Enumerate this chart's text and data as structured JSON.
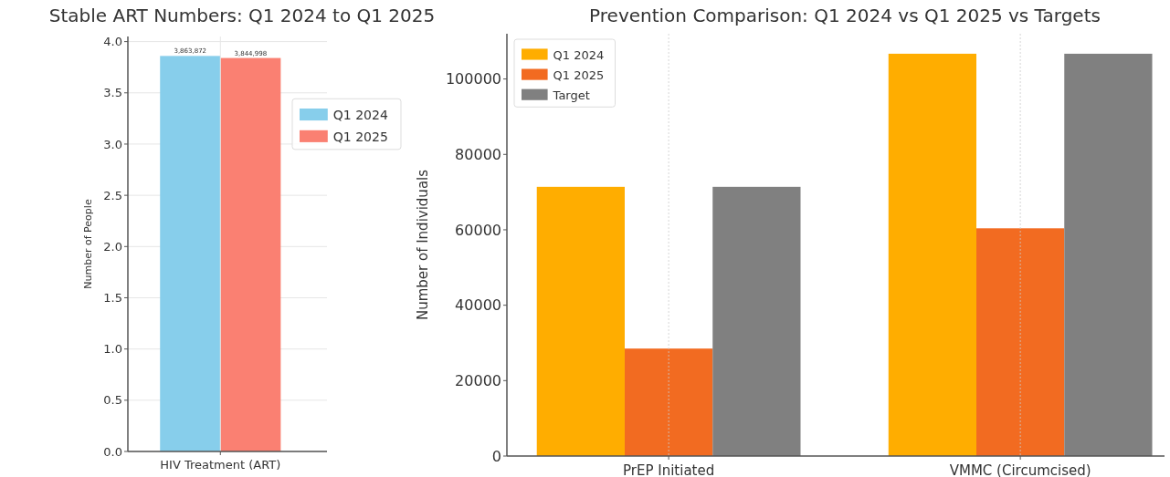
{
  "chart_data": [
    {
      "type": "bar",
      "title": "Stable ART Numbers: Q1 2024 to Q1 2025",
      "ylabel": "Number of People",
      "categories": [
        "HIV Treatment (ART)"
      ],
      "series": [
        {
          "name": "Q1 2024",
          "color": "#87ceeb",
          "values": [
            3.86
          ]
        },
        {
          "name": "Q1 2025",
          "color": "#fa8072",
          "values": [
            3.84
          ]
        }
      ],
      "annotations": [
        "3,863,872",
        "3,844,998"
      ],
      "ylim": [
        0,
        4.05
      ],
      "yticks": [
        {
          "value": 0,
          "label": "0.0"
        },
        {
          "value": 0.5,
          "label": "0.5"
        },
        {
          "value": 1,
          "label": "1.0"
        },
        {
          "value": 1.5,
          "label": "1.5"
        },
        {
          "value": 2,
          "label": "2.0"
        },
        {
          "value": 2.5,
          "label": "2.5"
        },
        {
          "value": 3,
          "label": "3.0"
        },
        {
          "value": 3.5,
          "label": "3.5"
        },
        {
          "value": 4,
          "label": "4.0"
        }
      ],
      "grid": true,
      "legend": "right"
    },
    {
      "type": "bar",
      "title": "Prevention Comparison: Q1 2024 vs Q1 2025 vs Targets",
      "ylabel": "Number of Individuals",
      "categories": [
        "PrEP Initiated",
        "VMMC (Circumcised)"
      ],
      "series": [
        {
          "name": "Q1 2024",
          "color": "#ffad00",
          "values": [
            71400,
            106700
          ]
        },
        {
          "name": "Q1 2025",
          "color": "#f26b21",
          "values": [
            28500,
            60400
          ]
        },
        {
          "name": "Target",
          "color": "#808080",
          "values": [
            71400,
            106700
          ]
        }
      ],
      "ylim": [
        0,
        112000
      ],
      "yticks": [
        0,
        20000,
        40000,
        60000,
        80000,
        100000
      ],
      "grid": "x",
      "legend": "top left"
    }
  ]
}
